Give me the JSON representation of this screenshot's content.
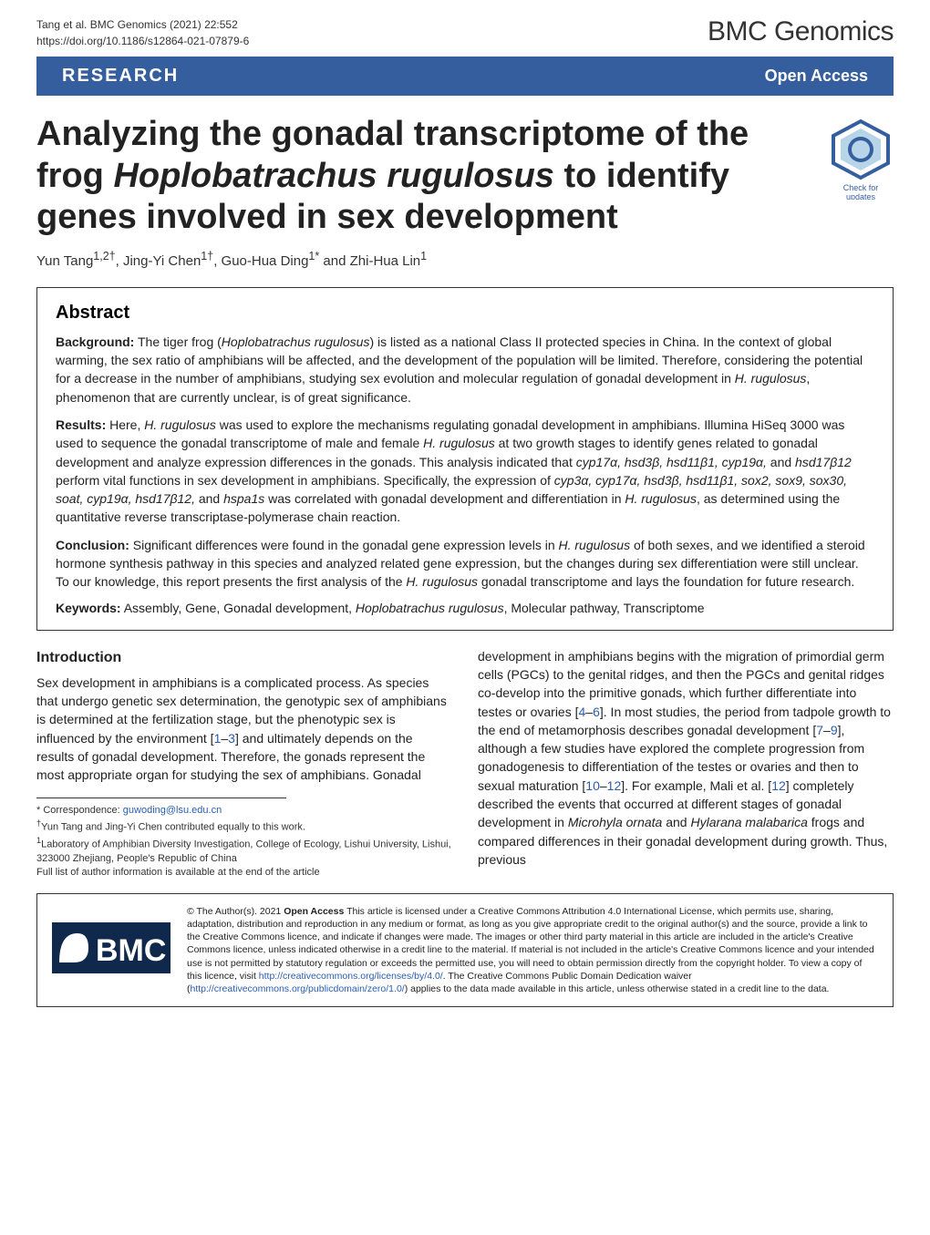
{
  "header": {
    "citation_line1": "Tang et al. BMC Genomics          (2021) 22:552",
    "citation_line2": "https://doi.org/10.1186/s12864-021-07879-6",
    "journal_brand": "BMC Genomics"
  },
  "banner": {
    "left": "RESEARCH",
    "right": "Open Access"
  },
  "title": {
    "html": "Analyzing the gonadal transcriptome of the frog <em>Hoplobatrachus rugulosus</em> to identify genes involved in sex development"
  },
  "check_badge": {
    "border_color": "#355e9f",
    "label": "Check for updates"
  },
  "authors": {
    "line": "Yun Tang<sup>1,2†</sup>, Jing-Yi Chen<sup>1†</sup>, Guo-Hua Ding<sup>1*</sup> and Zhi-Hua Lin<sup>1</sup>"
  },
  "abstract": {
    "heading": "Abstract",
    "background_label": "Background:",
    "background_text": " The tiger frog (<em>Hoplobatrachus rugulosus</em>) is listed as a national Class II protected species in China. In the context of global warming, the sex ratio of amphibians will be affected, and the development of the population will be limited. Therefore, considering the potential for a decrease in the number of amphibians, studying sex evolution and molecular regulation of gonadal development in <em>H. rugulosus</em>, phenomenon that are currently unclear, is of great significance.",
    "results_label": "Results:",
    "results_text": " Here, <em>H. rugulosus</em> was used to explore the mechanisms regulating gonadal development in amphibians. Illumina HiSeq 3000 was used to sequence the gonadal transcriptome of male and female <em>H. rugulosus</em> at two growth stages to identify genes related to gonadal development and analyze expression differences in the gonads. This analysis indicated that <em>cyp17α, hsd3β, hsd11β1, cyp19α,</em> and <em>hsd17β12</em> perform vital functions in sex development in amphibians. Specifically, the expression of <em>cyp3α, cyp17α, hsd3β, hsd11β1, sox2, sox9, sox30, soat, cyp19α, hsd17β12,</em> and <em>hspa1s</em> was correlated with gonadal development and differentiation in <em>H. rugulosus</em>, as determined using the quantitative reverse transcriptase-polymerase chain reaction.",
    "conclusion_label": "Conclusion:",
    "conclusion_text": " Significant differences were found in the gonadal gene expression levels in <em>H. rugulosus</em> of both sexes, and we identified a steroid hormone synthesis pathway in this species and analyzed related gene expression, but the changes during sex differentiation were still unclear. To our knowledge, this report presents the first analysis of the <em>H. rugulosus</em> gonadal transcriptome and lays the foundation for future research.",
    "keywords_label": "Keywords:",
    "keywords_text": " Assembly, Gene, Gonadal development, <em>Hoplobatrachus rugulosus</em>, Molecular pathway, Transcriptome"
  },
  "body": {
    "intro_heading": "Introduction",
    "intro_col1": "Sex development in amphibians is a complicated process. As species that undergo genetic sex determination, the genotypic sex of amphibians is determined at the fertilization stage, but the phenotypic sex is influenced by the environment [<a class='ref-link'>1</a>–<a class='ref-link'>3</a>] and ultimately depends on the results of gonadal development. Therefore, the gonads represent the most appropriate organ for studying the sex of amphibians. Gonadal",
    "intro_col2": "development in amphibians begins with the migration of primordial germ cells (PGCs) to the genital ridges, and then the PGCs and genital ridges co-develop into the primitive gonads, which further differentiate into testes or ovaries [<a class='ref-link'>4</a>–<a class='ref-link'>6</a>]. In most studies, the period from tadpole growth to the end of metamorphosis describes gonadal development [<a class='ref-link'>7</a>–<a class='ref-link'>9</a>], although a few studies have explored the complete progression from gonadogenesis to differentiation of the testes or ovaries and then to sexual maturation [<a class='ref-link'>10</a>–<a class='ref-link'>12</a>]. For example, Mali et al. [<a class='ref-link'>12</a>] completely described the events that occurred at different stages of gonadal development in <em>Microhyla ornata</em> and <em>Hylarana malabarica</em> frogs and compared differences in their gonadal development during growth. Thus, previous"
  },
  "footnotes": {
    "correspondence": "* Correspondence: <a>guwoding@lsu.edu.cn</a>",
    "equal": "<sup>†</sup>Yun Tang and Jing-Yi Chen contributed equally to this work.",
    "affil1": "<sup>1</sup>Laboratory of Amphibian Diversity Investigation, College of Ecology, Lishui University, Lishui, 323000 Zhejiang, People's Republic of China",
    "full": "Full list of author information is available at the end of the article"
  },
  "bmc_logo": {
    "bg": "#10284b",
    "text": "BMC"
  },
  "license": {
    "text": "© The Author(s). 2021 <strong>Open Access</strong> This article is licensed under a Creative Commons Attribution 4.0 International License, which permits use, sharing, adaptation, distribution and reproduction in any medium or format, as long as you give appropriate credit to the original author(s) and the source, provide a link to the Creative Commons licence, and indicate if changes were made. The images or other third party material in this article are included in the article's Creative Commons licence, unless indicated otherwise in a credit line to the material. If material is not included in the article's Creative Commons licence and your intended use is not permitted by statutory regulation or exceeds the permitted use, you will need to obtain permission directly from the copyright holder. To view a copy of this licence, visit <a>http://creativecommons.org/licenses/by/4.0/</a>. The Creative Commons Public Domain Dedication waiver (<a>http://creativecommons.org/publicdomain/zero/1.0/</a>) applies to the data made available in this article, unless otherwise stated in a credit line to the data."
  }
}
